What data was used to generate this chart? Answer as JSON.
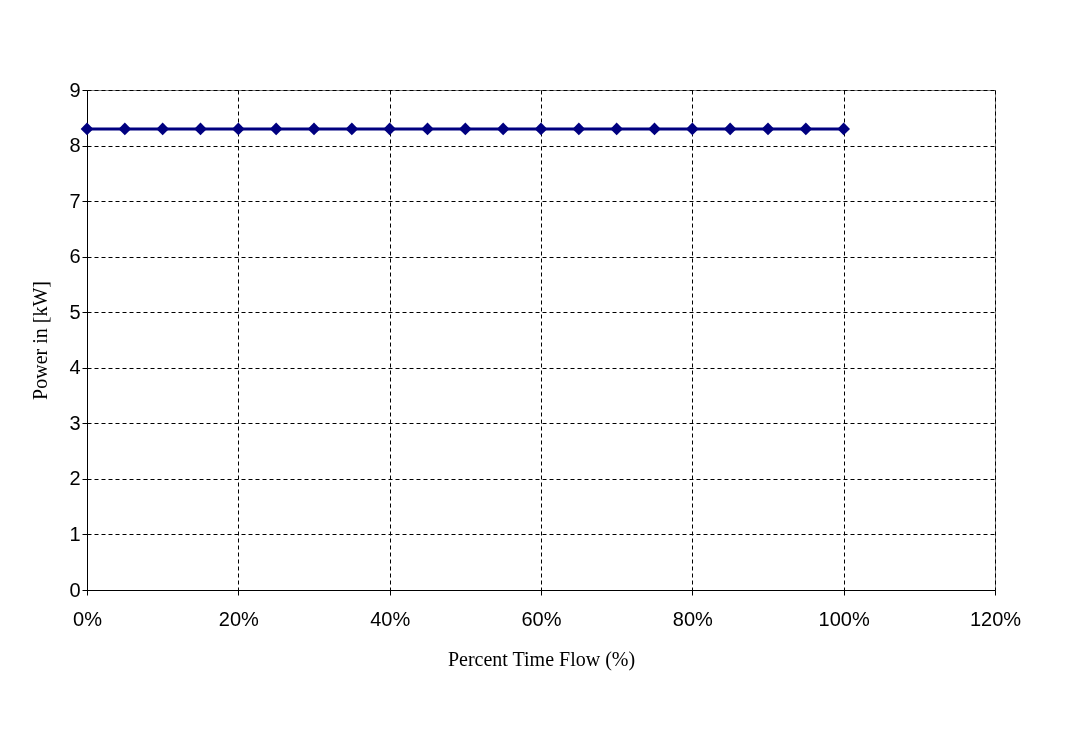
{
  "chart_data": {
    "type": "line",
    "xlabel": "Percent Time Flow  (%)",
    "ylabel": "Power in  [kW]",
    "x": [
      0,
      5,
      10,
      15,
      20,
      25,
      30,
      35,
      40,
      45,
      50,
      55,
      60,
      65,
      70,
      75,
      80,
      85,
      90,
      95,
      100
    ],
    "series": [
      {
        "color": "#000080",
        "values": [
          8.3,
          8.3,
          8.3,
          8.3,
          8.3,
          8.3,
          8.3,
          8.3,
          8.3,
          8.3,
          8.3,
          8.3,
          8.3,
          8.3,
          8.3,
          8.3,
          8.3,
          8.3,
          8.3,
          8.3,
          8.3
        ]
      }
    ],
    "xlim": [
      0,
      120
    ],
    "xticks": [
      {
        "value": 0,
        "label": "0%"
      },
      {
        "value": 20,
        "label": "20%"
      },
      {
        "value": 40,
        "label": "40%"
      },
      {
        "value": 60,
        "label": "60%"
      },
      {
        "value": 80,
        "label": "80%"
      },
      {
        "value": 100,
        "label": "100%"
      },
      {
        "value": 120,
        "label": "120%"
      }
    ],
    "ylim": [
      0,
      9
    ],
    "yticks": [
      0,
      1,
      2,
      3,
      4,
      5,
      6,
      7,
      8,
      9
    ],
    "grid": true,
    "marker": "diamond",
    "line_style": "solid"
  }
}
